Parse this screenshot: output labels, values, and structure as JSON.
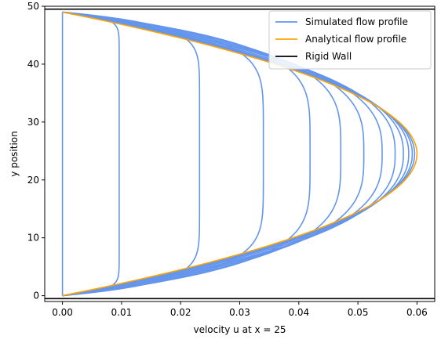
{
  "chart_data": {
    "type": "line",
    "xlabel": "velocity u at x = 25",
    "ylabel": "y position",
    "xlim": [
      -0.003,
      0.063
    ],
    "ylim": [
      -1,
      50
    ],
    "xticks": [
      "0.00",
      "0.01",
      "0.02",
      "0.03",
      "0.04",
      "0.05",
      "0.06"
    ],
    "yticks": [
      "0",
      "10",
      "20",
      "30",
      "40",
      "50"
    ],
    "grid": false,
    "legend_position": "top-right",
    "colors": {
      "simulated": "#6495ed",
      "analytical": "#ffa500",
      "wall": "#000000",
      "axes": "#000000"
    },
    "channel": {
      "y_bottom": 0,
      "y_top": 49
    },
    "series": [
      {
        "name": "Simulated flow profile",
        "kind": "simulated",
        "profiles": [
          {
            "max_u": 0.0,
            "sharpness": 1
          },
          {
            "max_u": 0.0096,
            "sharpness": 14
          },
          {
            "max_u": 0.0232,
            "sharpness": 5.5
          },
          {
            "max_u": 0.034,
            "sharpness": 3.2
          },
          {
            "max_u": 0.0419,
            "sharpness": 2.4
          },
          {
            "max_u": 0.0471,
            "sharpness": 1.9
          },
          {
            "max_u": 0.051,
            "sharpness": 1.6
          },
          {
            "max_u": 0.0541,
            "sharpness": 1.4
          },
          {
            "max_u": 0.0563,
            "sharpness": 1.28
          },
          {
            "max_u": 0.0577,
            "sharpness": 1.18
          },
          {
            "max_u": 0.0586,
            "sharpness": 1.11
          },
          {
            "max_u": 0.0592,
            "sharpness": 1.06
          },
          {
            "max_u": 0.0596,
            "sharpness": 1.03
          }
        ]
      },
      {
        "name": "Analytical flow profile",
        "kind": "analytical",
        "max_u": 0.06
      },
      {
        "name": "Rigid Wall",
        "kind": "wall",
        "y_values": [
          -0.5,
          49.5
        ]
      }
    ]
  }
}
